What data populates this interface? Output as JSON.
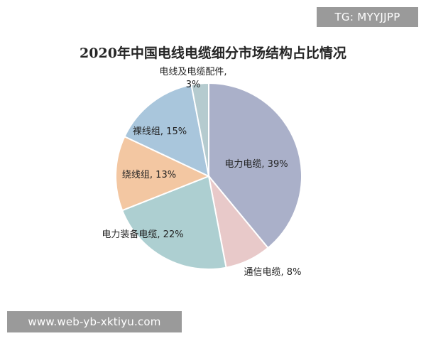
{
  "watermark_top": "TG: MYYJJPP",
  "watermark_bottom": "www.web-yb-xktiyu.com",
  "chart_data": {
    "type": "pie",
    "title": "2020年中国电线电缆细分市场结构占比情况",
    "slices": [
      {
        "label": "电力电缆, 39%",
        "value": 39,
        "color": "#aab0c9"
      },
      {
        "label": "通信电缆, 8%",
        "value": 8,
        "color": "#e8c9c9"
      },
      {
        "label": "电力装备电缆, 22%",
        "value": 22,
        "color": "#adcfd1"
      },
      {
        "label": "绕线组, 13%",
        "value": 13,
        "color": "#f3c7a2"
      },
      {
        "label": "裸线组, 15%",
        "value": 15,
        "color": "#a9c6dc"
      },
      {
        "label_lines": [
          "电线及电缆配件,",
          "3%"
        ],
        "value": 3,
        "color": "#b5cbcf"
      }
    ]
  }
}
